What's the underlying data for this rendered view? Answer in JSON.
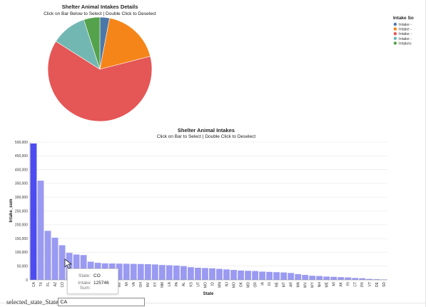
{
  "colors": {
    "bar_selected": "#4c4cf0",
    "bar_default": "#9a9af2",
    "pie": [
      "#4c78a8",
      "#f58518",
      "#e45756",
      "#72b7b2",
      "#54a24b"
    ]
  },
  "tooltip": {
    "state_key": "State",
    "state_value": "CO",
    "sum_key": "Intake Sum",
    "sum_value": "125746"
  },
  "selector": {
    "label": "selected_state_State",
    "value": "CA"
  },
  "chart_data": [
    {
      "type": "pie",
      "title": "Shelter Animal Intakes Details",
      "subtitle": "Click on Bar Below to Select | Double Click to Deselect",
      "legend_title": "Intake So",
      "legend_position": "top-right",
      "series": [
        {
          "name": "Intake -",
          "value": 3
        },
        {
          "name": "Intake -",
          "value": 18
        },
        {
          "name": "Intake -",
          "value": 63
        },
        {
          "name": "Intake -",
          "value": 11
        },
        {
          "name": "Intakes",
          "value": 5
        }
      ]
    },
    {
      "type": "bar",
      "title": "Shelter Animal Intakes",
      "subtitle": "Click on Bar to Select | Double Click to Deselect",
      "xlabel": "State",
      "ylabel": "Intake_sum",
      "ylim": [
        0,
        500000
      ],
      "yticks": [
        "0",
        "50,000",
        "100,000",
        "150,000",
        "200,000",
        "250,000",
        "300,000",
        "350,000",
        "400,000",
        "450,000",
        "500,000"
      ],
      "grid": true,
      "selected": "CA",
      "categories": [
        "CA",
        "TX",
        "FL",
        "AZ",
        "CO",
        "NY",
        "GA",
        "NC",
        "OH",
        "IL",
        "PA",
        "WA",
        "NV",
        "MI",
        "VA",
        "OH",
        "NV",
        "KY",
        "NM",
        "LA",
        "PA",
        "AL",
        "KS",
        "UT",
        "MO",
        "ID",
        "MN",
        "NJ",
        "MO",
        "OK",
        "MD",
        "OR",
        "IA",
        "RI",
        "NE",
        "MT",
        "AR",
        "MA",
        "WV",
        "WY",
        "NH",
        "ME",
        "MI",
        "AK",
        "RI",
        "CT",
        "PR",
        "VT",
        "DE",
        "SD"
      ],
      "values": [
        495000,
        360000,
        178000,
        153000,
        125746,
        98000,
        92000,
        90000,
        66000,
        62000,
        60000,
        59500,
        59000,
        58500,
        58000,
        57500,
        57000,
        56000,
        54000,
        53000,
        52000,
        50000,
        46000,
        44000,
        43000,
        42000,
        40000,
        38000,
        36000,
        34000,
        33000,
        32000,
        30000,
        29000,
        28000,
        27000,
        25000,
        21000,
        18000,
        15000,
        14000,
        12000,
        11000,
        10000,
        9000,
        7000,
        6000,
        3500,
        2500,
        1500
      ]
    }
  ]
}
